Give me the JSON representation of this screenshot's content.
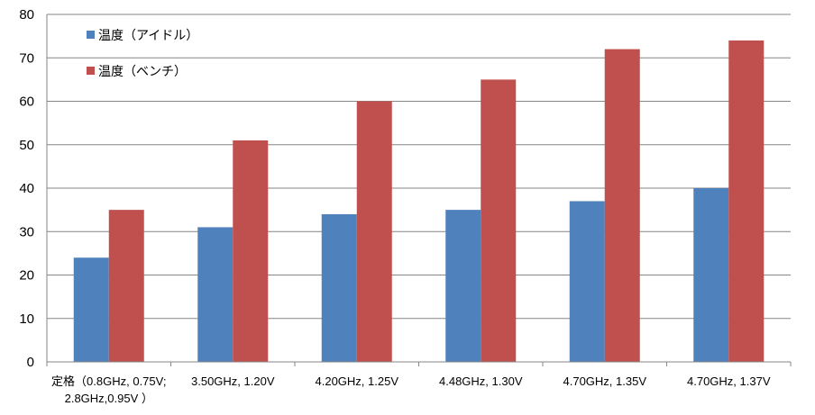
{
  "chart_data": {
    "type": "bar",
    "categories": [
      [
        "定格（0.8GHz, 0.75V;",
        "2.8GHz,0.95V ）"
      ],
      [
        "3.50GHz, 1.20V"
      ],
      [
        "4.20GHz, 1.25V"
      ],
      [
        "4.48GHz, 1.30V"
      ],
      [
        "4.70GHz, 1.35V"
      ],
      [
        "4.70GHz, 1.37V"
      ]
    ],
    "series": [
      {
        "name": "温度（アイドル）",
        "color": "#4F81BD",
        "values": [
          24,
          31,
          34,
          35,
          37,
          40
        ]
      },
      {
        "name": "温度（ベンチ）",
        "color": "#C0504D",
        "values": [
          35,
          51,
          60,
          65,
          72,
          74
        ]
      }
    ],
    "ylim": [
      0,
      80
    ],
    "yticks": [
      "0",
      "10",
      "20",
      "30",
      "40",
      "50",
      "60",
      "70",
      "80"
    ],
    "grid": true,
    "legend_position": "top-left"
  }
}
